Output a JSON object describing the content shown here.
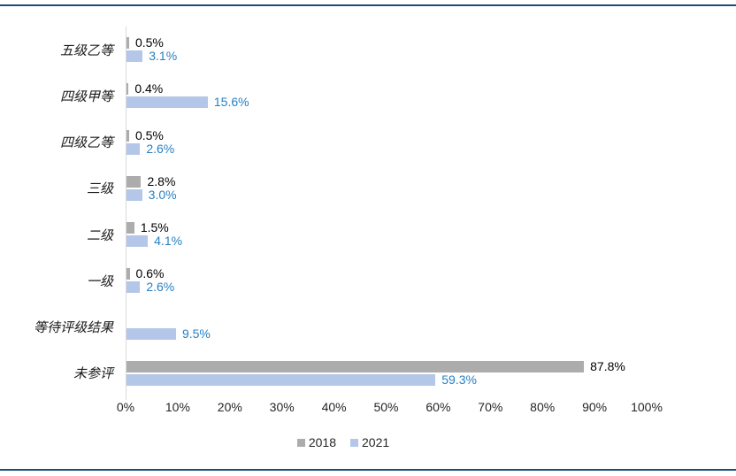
{
  "page": {
    "rule_color": "#1C4E75",
    "background": "#ffffff",
    "axis_line_color": "#D9D9D9"
  },
  "chart_data": {
    "type": "bar",
    "orientation": "horizontal",
    "title": "",
    "categories": [
      "五级乙等",
      "四级甲等",
      "四级乙等",
      "三级",
      "二级",
      "一级",
      "等待评级结果",
      "未参评"
    ],
    "series": [
      {
        "name": "2018",
        "color": "#ACACAC",
        "label_color": "#000000",
        "values": [
          0.5,
          0.4,
          0.5,
          2.8,
          1.5,
          0.6,
          null,
          87.8
        ]
      },
      {
        "name": "2021",
        "color": "#B5C7E8",
        "label_color": "#2780C3",
        "values": [
          3.1,
          15.6,
          2.6,
          3.0,
          4.1,
          2.6,
          9.5,
          59.3
        ]
      }
    ],
    "value_suffix": "%",
    "xlim": [
      0,
      100
    ],
    "x_ticks": [
      "0%",
      "10%",
      "20%",
      "30%",
      "40%",
      "50%",
      "60%",
      "70%",
      "80%",
      "90%",
      "100%"
    ],
    "grid": false,
    "legend_position": "bottom",
    "data_labels": true
  }
}
